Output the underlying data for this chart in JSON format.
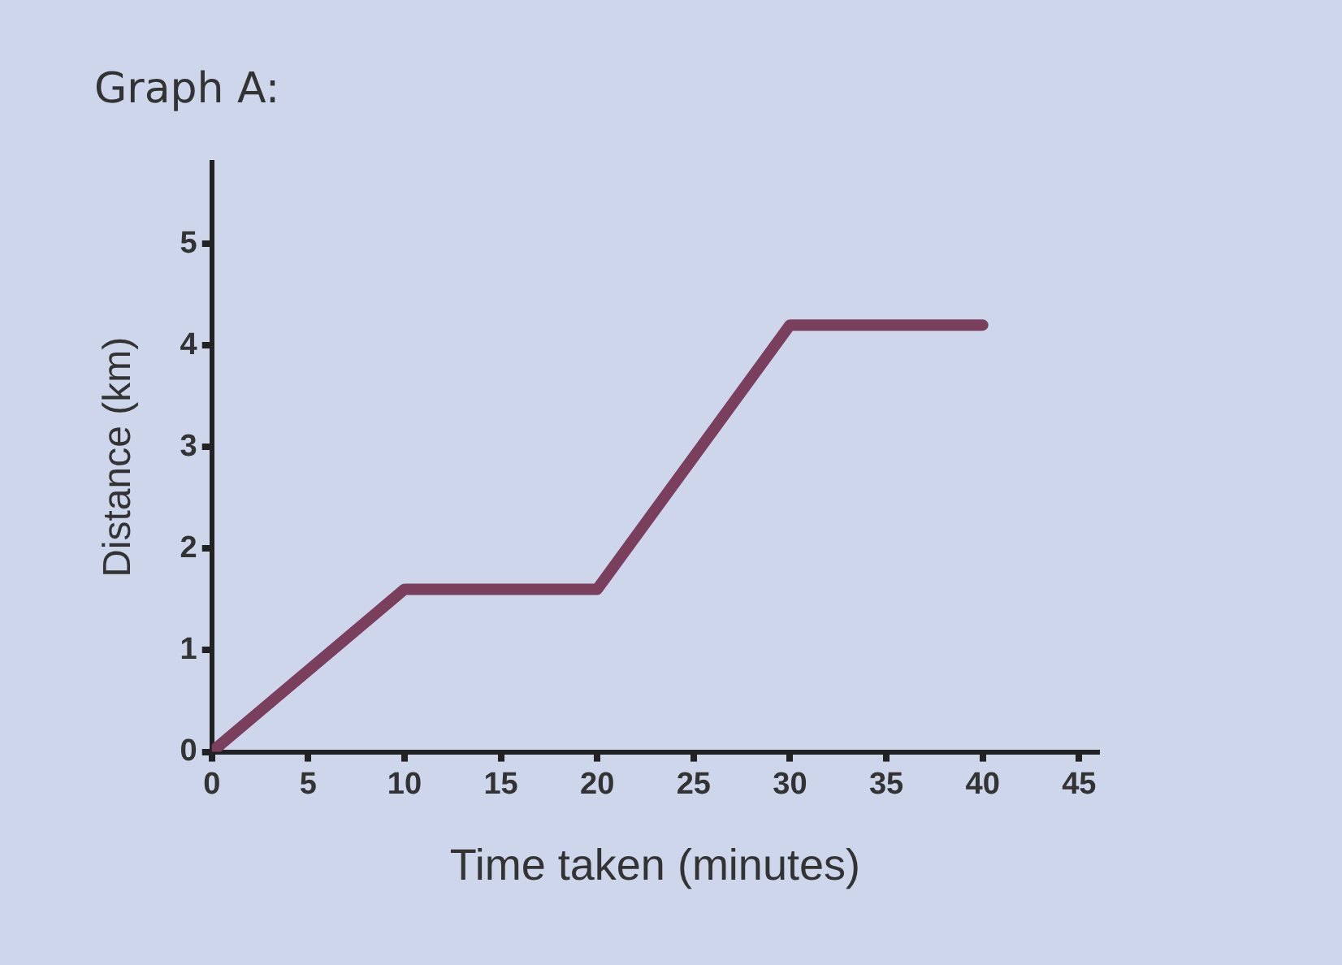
{
  "chart_data": {
    "type": "line",
    "title": "Graph A:",
    "xlabel": "Time taken (minutes)",
    "ylabel": "Distance (km)",
    "x": [
      0,
      10,
      20,
      30,
      40
    ],
    "series": [
      {
        "color": "#7a3f5c",
        "values": [
          0,
          1.6,
          1.6,
          4.2,
          4.2
        ]
      }
    ],
    "xlim": [
      0,
      46
    ],
    "xticks": [
      0,
      5,
      10,
      15,
      20,
      25,
      30,
      35,
      40,
      45
    ],
    "ylim": [
      0,
      5.8
    ],
    "yticks": [
      0,
      1,
      2,
      3,
      4,
      5
    ],
    "grid": false,
    "legend": false,
    "marker": "none",
    "line_style": "solid"
  }
}
